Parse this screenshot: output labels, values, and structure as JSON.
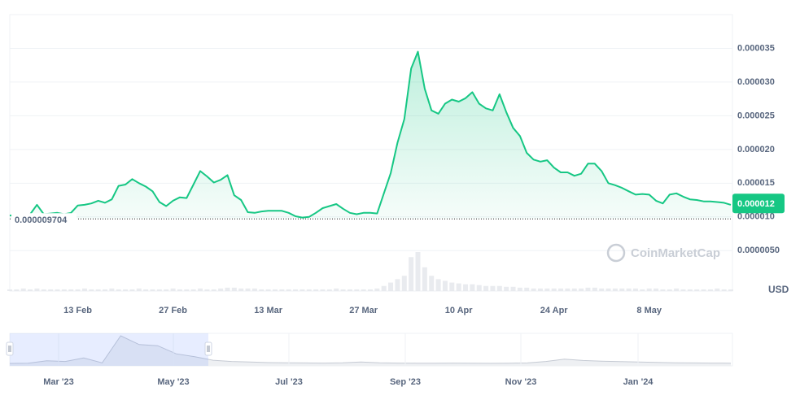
{
  "chart_data": {
    "type": "line",
    "color": "#16c784",
    "categories": [
      null,
      null,
      null,
      null,
      null,
      null,
      null,
      null,
      null,
      null,
      "13 Feb",
      null,
      null,
      null,
      null,
      null,
      null,
      null,
      null,
      null,
      null,
      null,
      null,
      null,
      "27 Feb",
      null,
      null,
      null,
      null,
      null,
      null,
      null,
      null,
      null,
      null,
      null,
      null,
      null,
      "13 Mar",
      null,
      null,
      null,
      null,
      null,
      null,
      null,
      null,
      null,
      null,
      null,
      null,
      null,
      "27 Mar",
      null,
      null,
      null,
      null,
      null,
      null,
      null,
      null,
      null,
      null,
      null,
      null,
      null,
      "10 Apr",
      null,
      null,
      null,
      null,
      null,
      null,
      null,
      null,
      null,
      null,
      null,
      null,
      null,
      "24 Apr",
      null,
      null,
      null,
      null,
      null,
      null,
      null,
      null,
      null,
      null,
      null,
      null,
      null,
      "8 May",
      null,
      null,
      null,
      null,
      null,
      null,
      null,
      null,
      null,
      null,
      null,
      null
    ],
    "values": [
      1.02e-05,
      1.03e-05,
      1.02e-05,
      1.04e-05,
      1.18e-05,
      1.04e-05,
      1.05e-05,
      1.06e-05,
      1.04e-05,
      1.06e-05,
      1.17e-05,
      1.18e-05,
      1.2e-05,
      1.24e-05,
      1.21e-05,
      1.26e-05,
      1.46e-05,
      1.48e-05,
      1.56e-05,
      1.5e-05,
      1.45e-05,
      1.38e-05,
      1.22e-05,
      1.16e-05,
      1.24e-05,
      1.29e-05,
      1.28e-05,
      1.48e-05,
      1.68e-05,
      1.6e-05,
      1.51e-05,
      1.55e-05,
      1.62e-05,
      1.32e-05,
      1.25e-05,
      1.07e-05,
      1.06e-05,
      1.08e-05,
      1.09e-05,
      1.09e-05,
      1.09e-05,
      1.06e-05,
      1.01e-05,
      9.9e-06,
      1e-05,
      1.06e-05,
      1.13e-05,
      1.16e-05,
      1.19e-05,
      1.12e-05,
      1.06e-05,
      1.04e-05,
      1.06e-05,
      1.06e-05,
      1.05e-05,
      1.35e-05,
      1.65e-05,
      2.1e-05,
      2.45e-05,
      3.2e-05,
      3.45e-05,
      2.9e-05,
      2.58e-05,
      2.53e-05,
      2.68e-05,
      2.74e-05,
      2.71e-05,
      2.76e-05,
      2.85e-05,
      2.68e-05,
      2.61e-05,
      2.58e-05,
      2.82e-05,
      2.55e-05,
      2.32e-05,
      2.2e-05,
      1.95e-05,
      1.85e-05,
      1.82e-05,
      1.84e-05,
      1.73e-05,
      1.66e-05,
      1.66e-05,
      1.61e-05,
      1.64e-05,
      1.79e-05,
      1.79e-05,
      1.68e-05,
      1.5e-05,
      1.47e-05,
      1.43e-05,
      1.38e-05,
      1.33e-05,
      1.34e-05,
      1.33e-05,
      1.24e-05,
      1.2e-05,
      1.33e-05,
      1.35e-05,
      1.3e-05,
      1.26e-05,
      1.25e-05,
      1.23e-05,
      1.23e-05,
      1.22e-05,
      1.21e-05,
      1.18e-05
    ],
    "volume": [
      2,
      2,
      3,
      2,
      3,
      2,
      2,
      2,
      2,
      2,
      2,
      3,
      2,
      2,
      2,
      3,
      2,
      2,
      2,
      3,
      2,
      2,
      2,
      2,
      3,
      2,
      2,
      2,
      3,
      2,
      2,
      3,
      4,
      4,
      3,
      3,
      3,
      2,
      2,
      2,
      2,
      2,
      2,
      2,
      2,
      2,
      2,
      2,
      3,
      2,
      2,
      2,
      2,
      2,
      3,
      6,
      10,
      14,
      18,
      40,
      46,
      28,
      18,
      14,
      12,
      10,
      9,
      8,
      8,
      7,
      6,
      6,
      6,
      5,
      5,
      4,
      4,
      3,
      3,
      3,
      3,
      3,
      3,
      3,
      3,
      4,
      4,
      3,
      3,
      3,
      3,
      3,
      3,
      2,
      3,
      3,
      2,
      2,
      3,
      2,
      2,
      2,
      2,
      2,
      3,
      2,
      2
    ],
    "ylim": [
      -1e-06,
      4e-05
    ],
    "yticks": [
      {
        "value": 5e-06,
        "label": "0.0000050"
      },
      {
        "value": 1e-05,
        "label": "0.000010"
      },
      1.5e-05,
      {
        "value": 2e-05,
        "label": "0.000020"
      },
      2.5e-05,
      {
        "value": 3e-05,
        "label": "0.000030"
      },
      3.5e-05
    ],
    "grid": true,
    "reference": 9.704e-06,
    "current_price": 1.2e-05,
    "currency": "USD",
    "watermark": "CoinMarketCap",
    "navigator": {
      "labels": [
        "Mar '23",
        "May '23",
        "Jul '23",
        "Sep '23",
        "Nov '23",
        "Jan '24"
      ],
      "values": [
        1.03e-05,
        1.05e-05,
        1.25e-05,
        1.2e-05,
        1.5e-05,
        1.08e-05,
        3.4e-05,
        2.65e-05,
        2.55e-05,
        1.85e-05,
        1.6e-05,
        1.3e-05,
        1.2e-05,
        1.15e-05,
        1.1e-05,
        1.08e-05,
        1.07e-05,
        1.06e-05,
        1.08e-05,
        1.15e-05,
        1.08e-05,
        1.06e-05,
        1.05e-05,
        1.05e-05,
        1.06e-05,
        1.05e-05,
        1.04e-05,
        1.05e-05,
        1.07e-05,
        1.2e-05,
        1.4e-05,
        1.28e-05,
        1.22e-05,
        1.18e-05,
        1.15e-05,
        1.12e-05,
        1.08e-05,
        1.07e-05,
        1.06e-05,
        1.05e-05
      ]
    }
  }
}
